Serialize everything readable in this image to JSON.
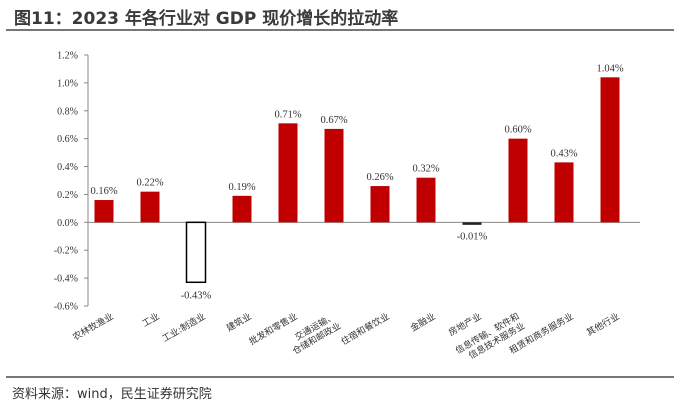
{
  "title": "图11：2023 年各行业对 GDP 现价增长的拉动率",
  "source": "资料来源：wind，民生证券研究院",
  "chart_data": {
    "type": "bar",
    "title": "",
    "xlabel": "",
    "ylabel": "",
    "ylim": [
      -0.6,
      1.2
    ],
    "yticks": [
      "1.2%",
      "1.0%",
      "0.8%",
      "0.6%",
      "0.4%",
      "0.2%",
      "0.0%",
      "-0.2%",
      "-0.4%",
      "-0.6%"
    ],
    "grid": false,
    "categories": [
      "农林牧渔业",
      "工业",
      "工业:制造业",
      "建筑业",
      "批发和零售业",
      "交通运输、仓储和邮政业",
      "住宿和餐饮业",
      "金融业",
      "房地产业",
      "信息传输、软件和信息技术服务业",
      "租赁和商务服务业",
      "其他行业"
    ],
    "values": [
      0.16,
      0.22,
      -0.43,
      0.19,
      0.71,
      0.67,
      0.26,
      0.32,
      -0.01,
      0.6,
      0.43,
      1.04
    ],
    "data_labels": [
      "0.16%",
      "0.22%",
      "-0.43%",
      "0.19%",
      "0.71%",
      "0.67%",
      "0.26%",
      "0.32%",
      "-0.01%",
      "0.60%",
      "0.43%",
      "1.04%"
    ],
    "colors": {
      "bar": "#c00000",
      "highlight_fill": "#ffffff",
      "highlight_stroke": "#000000",
      "negative_small": "#222222"
    }
  }
}
